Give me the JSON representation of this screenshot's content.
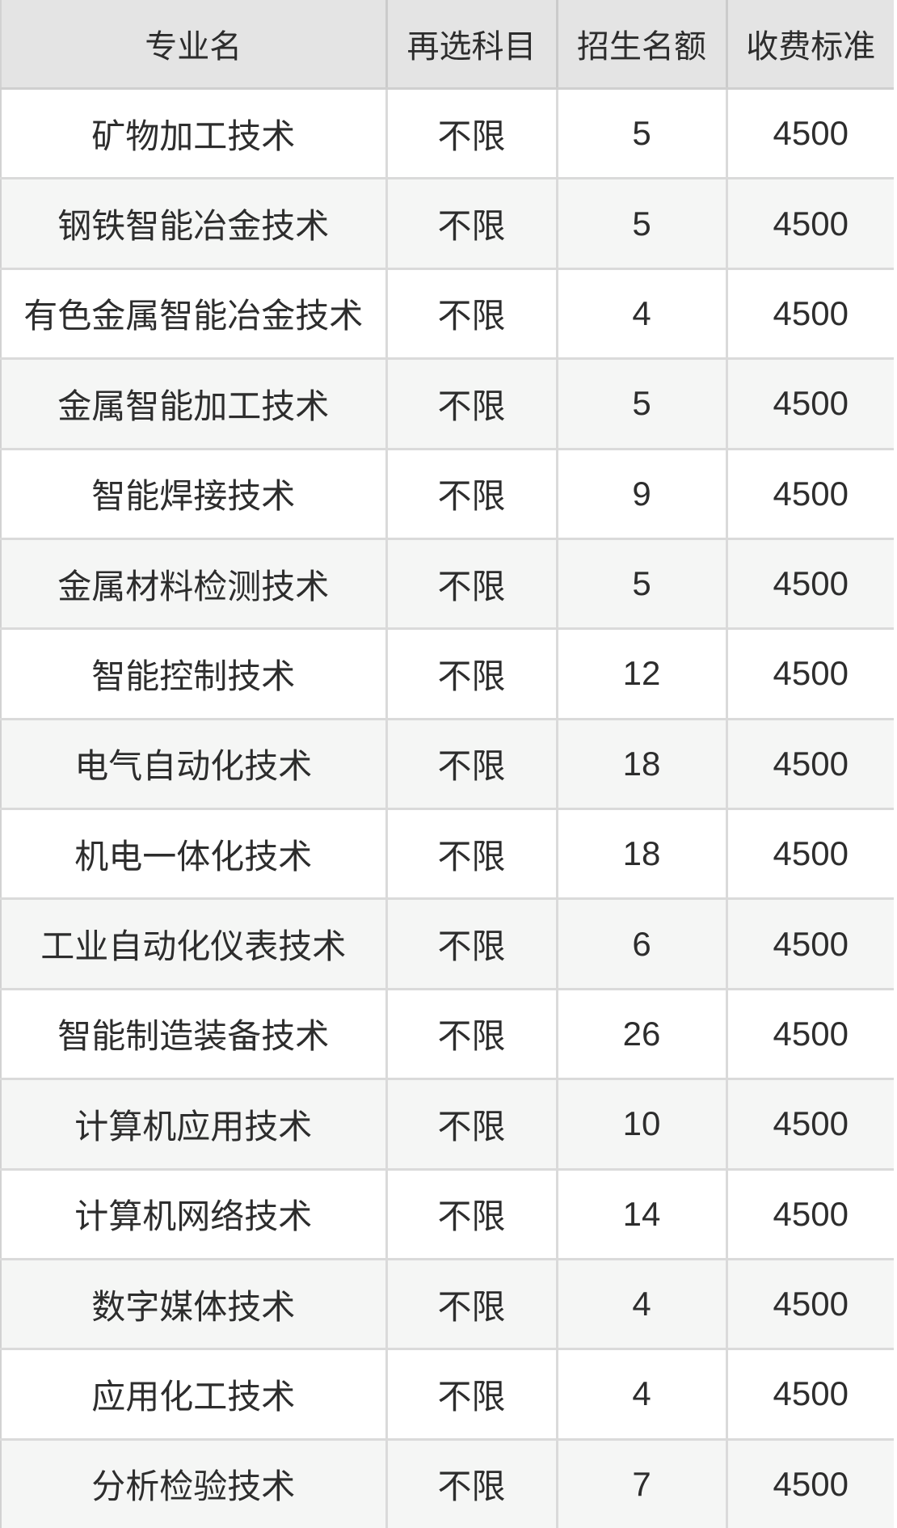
{
  "chart_data": {
    "type": "table",
    "columns": [
      "专业名",
      "再选科目",
      "招生名额",
      "收费标准"
    ],
    "rows": [
      [
        "矿物加工技术",
        "不限",
        "5",
        "4500"
      ],
      [
        "钢铁智能冶金技术",
        "不限",
        "5",
        "4500"
      ],
      [
        "有色金属智能冶金技术",
        "不限",
        "4",
        "4500"
      ],
      [
        "金属智能加工技术",
        "不限",
        "5",
        "4500"
      ],
      [
        "智能焊接技术",
        "不限",
        "9",
        "4500"
      ],
      [
        "金属材料检测技术",
        "不限",
        "5",
        "4500"
      ],
      [
        "智能控制技术",
        "不限",
        "12",
        "4500"
      ],
      [
        "电气自动化技术",
        "不限",
        "18",
        "4500"
      ],
      [
        "机电一体化技术",
        "不限",
        "18",
        "4500"
      ],
      [
        "工业自动化仪表技术",
        "不限",
        "6",
        "4500"
      ],
      [
        "智能制造装备技术",
        "不限",
        "26",
        "4500"
      ],
      [
        "计算机应用技术",
        "不限",
        "10",
        "4500"
      ],
      [
        "计算机网络技术",
        "不限",
        "14",
        "4500"
      ],
      [
        "数字媒体技术",
        "不限",
        "4",
        "4500"
      ],
      [
        "应用化工技术",
        "不限",
        "4",
        "4500"
      ],
      [
        "分析检验技术",
        "不限",
        "7",
        "4500"
      ]
    ]
  },
  "colors": {
    "header_bg": "#e4e4e4",
    "row_bg": "#ffffff",
    "row_alt_bg": "#f5f6f5",
    "grid_line": "#dadada",
    "text": "#2d2d2d"
  }
}
